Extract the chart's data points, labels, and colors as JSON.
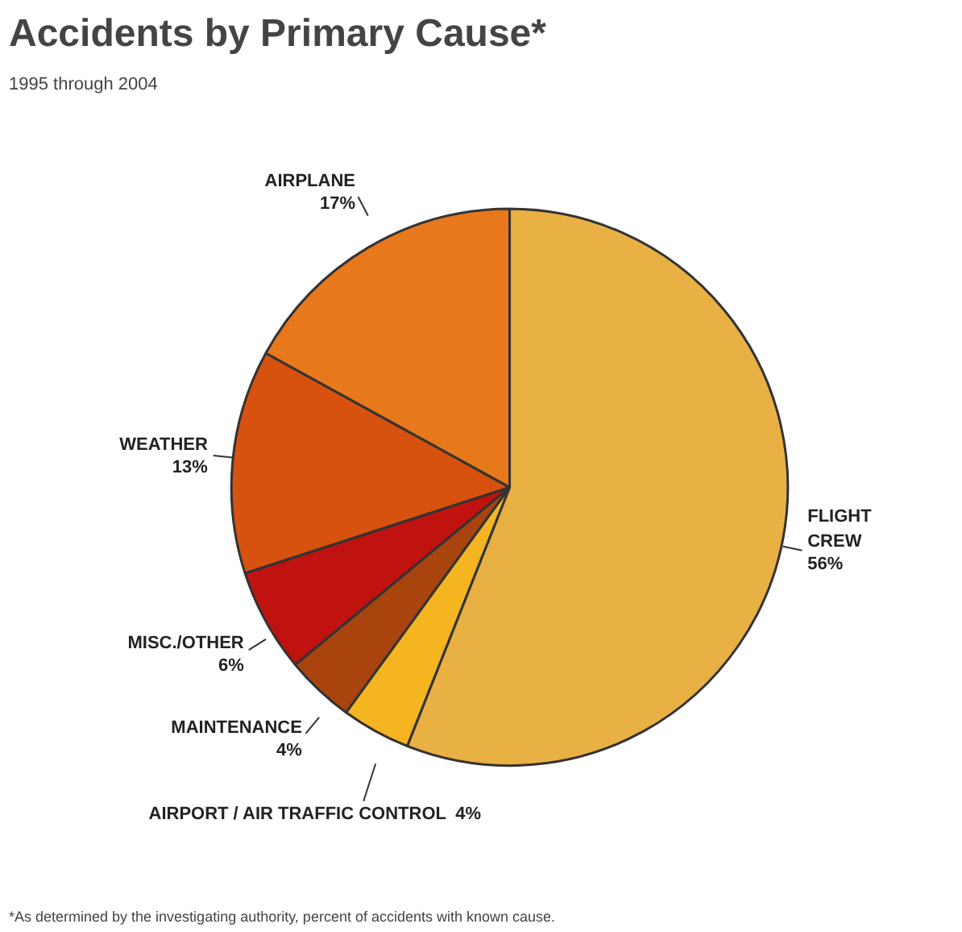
{
  "chart_data": {
    "type": "pie",
    "title": "Accidents by Primary Cause*",
    "subtitle": "1995 through 2004",
    "categories": [
      "FLIGHT CREW",
      "AIRPORT / AIR TRAFFIC CONTROL",
      "MAINTENANCE",
      "MISC./OTHER",
      "WEATHER",
      "AIRPLANE"
    ],
    "values": [
      56,
      4,
      4,
      6,
      13,
      17
    ],
    "colors": [
      "#e9b044",
      "#f4b521",
      "#a9440f",
      "#c0120f",
      "#d6520e",
      "#e8781c"
    ],
    "value_labels": [
      "56%",
      "4%",
      "4%",
      "6%",
      "13%",
      "17%"
    ],
    "annotations": [
      "*As determined by the investigating authority, percent of accidents with known cause."
    ]
  }
}
